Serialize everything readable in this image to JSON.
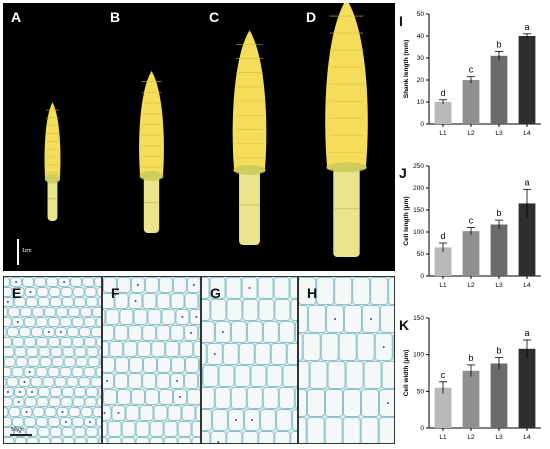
{
  "panels": {
    "photos": [
      {
        "label": "A",
        "length": 0.12
      },
      {
        "label": "B",
        "length": 0.3
      },
      {
        "label": "C",
        "length": 0.52
      },
      {
        "label": "D",
        "length": 0.7
      }
    ],
    "micrographs": [
      {
        "label": "E"
      },
      {
        "label": "F"
      },
      {
        "label": "G"
      },
      {
        "label": "H"
      }
    ],
    "photo_scale_text": "1cm",
    "micro_scale_text": "50μm"
  },
  "colors": {
    "bar_L1": "#b9b9b9",
    "bar_L2": "#8f8f8f",
    "bar_L3": "#6b6b6b",
    "bar_L4": "#2e2e2e",
    "ear": "#f3dd5a",
    "husk": "#e8e58a",
    "cell_wall": "#8fc3c9"
  },
  "chart_data": [
    {
      "type": "bar",
      "panel_label": "I",
      "categories": [
        "L1",
        "L2",
        "L3",
        "L4"
      ],
      "values": [
        10,
        20,
        31,
        40
      ],
      "errors": [
        1,
        1.5,
        2,
        1
      ],
      "letters": [
        "d",
        "c",
        "b",
        "a"
      ],
      "ylabel": "Shank length (mm)",
      "ylim": [
        0,
        50
      ],
      "yticks": [
        0,
        10,
        20,
        30,
        40,
        50
      ]
    },
    {
      "type": "bar",
      "panel_label": "J",
      "categories": [
        "L1",
        "L2",
        "L3",
        "L4"
      ],
      "values": [
        65,
        102,
        117,
        165
      ],
      "errors": [
        10,
        8,
        10,
        32
      ],
      "letters": [
        "d",
        "c",
        "b",
        "a"
      ],
      "ylabel": "Cell length (μm)",
      "ylim": [
        0,
        250
      ],
      "yticks": [
        0,
        50,
        100,
        150,
        200,
        250
      ]
    },
    {
      "type": "bar",
      "panel_label": "K",
      "categories": [
        "L1",
        "L2",
        "L3",
        "L4"
      ],
      "values": [
        55,
        78,
        88,
        108
      ],
      "errors": [
        8,
        8,
        8,
        12
      ],
      "letters": [
        "c",
        "b",
        "b",
        "a"
      ],
      "ylabel": "Cell width (μm)",
      "ylim": [
        0,
        150
      ],
      "yticks": [
        0,
        50,
        100,
        150
      ]
    }
  ]
}
